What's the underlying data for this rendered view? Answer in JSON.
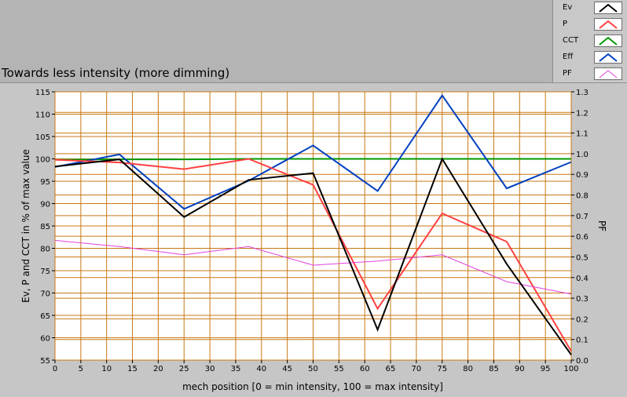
{
  "chart_data": {
    "type": "line",
    "title": "Towards less intensity (more dimming)",
    "xlabel": "mech position [0 = min intensity, 100 = max intensity]",
    "ylabel": "Ev, P and CCT in % of max value",
    "y2label": "PF",
    "xlim": [
      0,
      100
    ],
    "ylim": [
      55,
      115
    ],
    "y2lim": [
      0.0,
      1.3
    ],
    "x_ticks": [
      0,
      5,
      10,
      15,
      20,
      25,
      30,
      35,
      40,
      45,
      50,
      55,
      60,
      65,
      70,
      75,
      80,
      85,
      90,
      95,
      100
    ],
    "y_ticks": [
      55,
      60,
      65,
      70,
      75,
      80,
      85,
      90,
      95,
      100,
      105,
      110,
      115
    ],
    "y2_ticks": [
      "0.0",
      "0.1",
      "0.2",
      "0.3",
      "0.4",
      "0.5",
      "0.6",
      "0.7",
      "0.8",
      "0.9",
      "1.0",
      "1.1",
      "1.2",
      "1.3"
    ],
    "grid": true,
    "legend_position": "top-right",
    "series": [
      {
        "name": "Ev",
        "color": "#000000",
        "axis": "left",
        "x": [
          0,
          12.5,
          25,
          37.5,
          50,
          62.5,
          75,
          87.5,
          100
        ],
        "y": [
          98.3,
          99.9,
          87.0,
          95.3,
          96.8,
          61.8,
          100.0,
          76.5,
          56.2
        ]
      },
      {
        "name": "P",
        "color": "#ff4040",
        "axis": "left",
        "x": [
          0,
          12.5,
          25,
          37.5,
          50,
          62.5,
          75,
          87.5,
          100
        ],
        "y": [
          99.8,
          99.2,
          97.7,
          100.0,
          94.2,
          66.5,
          87.8,
          81.5,
          57.0
        ]
      },
      {
        "name": "CCT",
        "color": "#009900",
        "axis": "left",
        "x": [
          0,
          12.5,
          25,
          37.5,
          50,
          62.5,
          75,
          87.5,
          100
        ],
        "y": [
          99.8,
          99.9,
          99.9,
          100.0,
          100.0,
          100.0,
          100.0,
          100.0,
          100.0
        ]
      },
      {
        "name": "Eff",
        "color": "#0040c0",
        "axis": "left",
        "x": [
          0,
          12.5,
          25,
          37.5,
          50,
          62.5,
          75,
          87.5,
          100
        ],
        "y": [
          98.2,
          101.0,
          88.8,
          95.1,
          103.0,
          92.8,
          114.2,
          93.4,
          99.3
        ]
      },
      {
        "name": "PF",
        "color": "#e040e0",
        "axis": "right",
        "x": [
          0,
          12.5,
          25,
          37.5,
          50,
          62.5,
          75,
          87.5,
          100
        ],
        "y": [
          0.58,
          0.55,
          0.51,
          0.55,
          0.46,
          0.48,
          0.51,
          0.38,
          0.32
        ]
      }
    ]
  }
}
